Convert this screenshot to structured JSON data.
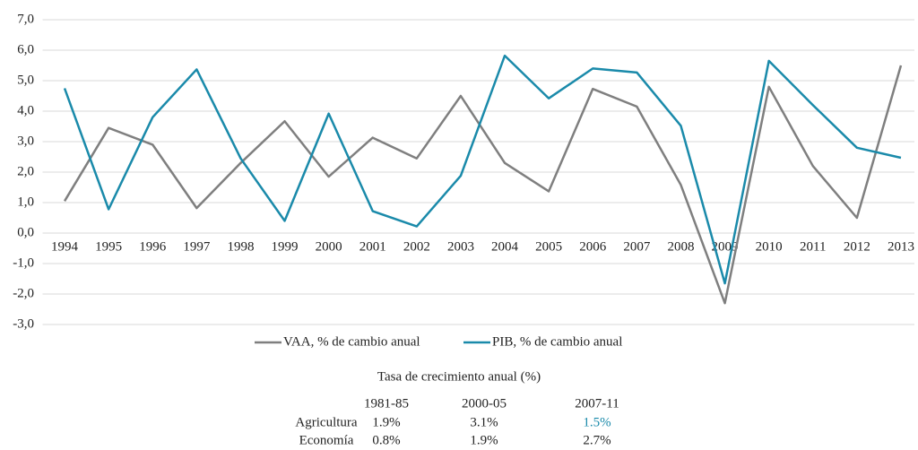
{
  "chart_data": {
    "type": "line",
    "categories": [
      "1994",
      "1995",
      "1996",
      "1997",
      "1998",
      "1999",
      "2000",
      "2001",
      "2002",
      "2003",
      "2004",
      "2005",
      "2006",
      "2007",
      "2008",
      "2009",
      "2010",
      "2011",
      "2012",
      "2013"
    ],
    "series": [
      {
        "name": "VAA, % de cambio anual",
        "color": "#7f7f7f",
        "values": [
          1.05,
          3.45,
          2.9,
          0.82,
          2.3,
          3.67,
          1.85,
          3.13,
          2.45,
          4.5,
          2.3,
          1.37,
          4.73,
          4.15,
          1.58,
          -2.3,
          4.8,
          2.2,
          0.5,
          5.5
        ]
      },
      {
        "name": "PIB, % de cambio anual",
        "color": "#1a8aaa",
        "values": [
          4.75,
          0.78,
          3.8,
          5.37,
          2.45,
          0.4,
          3.92,
          0.72,
          0.22,
          1.88,
          5.82,
          4.42,
          5.4,
          5.27,
          3.52,
          -1.65,
          5.65,
          4.2,
          2.8,
          2.47
        ]
      }
    ],
    "ylim": [
      -3,
      7
    ],
    "yticks": [
      {
        "value": -3,
        "label": "-3,0"
      },
      {
        "value": -2,
        "label": "-2,0"
      },
      {
        "value": -1,
        "label": "-1,0"
      },
      {
        "value": 0,
        "label": "0,0"
      },
      {
        "value": 1,
        "label": "1,0"
      },
      {
        "value": 2,
        "label": "2,0"
      },
      {
        "value": 3,
        "label": "3,0"
      },
      {
        "value": 4,
        "label": "4,0"
      },
      {
        "value": 5,
        "label": "5,0"
      },
      {
        "value": 6,
        "label": "6,0"
      },
      {
        "value": 7,
        "label": "7,0"
      }
    ],
    "grid": true,
    "legend": "bottom"
  },
  "table": {
    "title": "Tasa de crecimiento anual (%)",
    "columns": [
      "1981-85",
      "2000-05",
      "2007-11"
    ],
    "rows": [
      [
        "Agricultura",
        "1.9%",
        "3.1%",
        "1.5%"
      ],
      [
        "Economía",
        "0.8%",
        "1.9%",
        "2.7%"
      ]
    ]
  }
}
